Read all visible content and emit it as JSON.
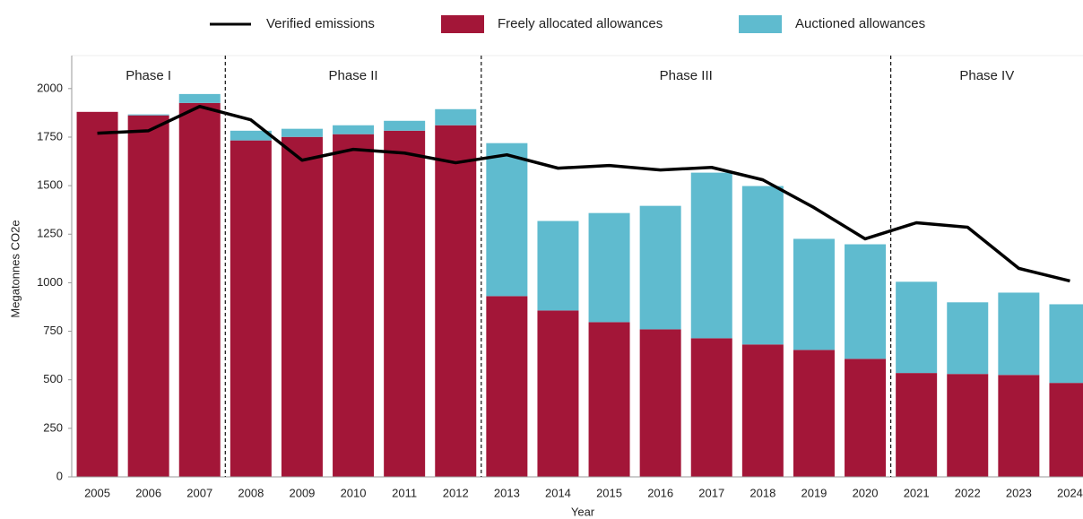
{
  "chart_data": {
    "type": "stacked-bar-line",
    "xlabel": "Year",
    "ylabel": "Megatonnes CO2e",
    "categories": [
      "2005",
      "2006",
      "2007",
      "2008",
      "2009",
      "2010",
      "2011",
      "2012",
      "2013",
      "2014",
      "2015",
      "2016",
      "2017",
      "2018",
      "2019",
      "2020",
      "2021",
      "2022",
      "2023",
      "2024"
    ],
    "series": [
      {
        "name": "Freely allocated allowances",
        "kind": "bar",
        "color": "#a31638",
        "values": [
          1880,
          1862,
          1926,
          1733,
          1751,
          1765,
          1783,
          1811,
          931,
          857,
          797,
          760,
          714,
          682,
          654,
          608,
          535,
          530,
          525,
          484
        ]
      },
      {
        "name": "Auctioned allowances",
        "kind": "bar",
        "color": "#5fbbcf",
        "values": [
          0,
          5,
          46,
          50,
          42,
          46,
          51,
          83,
          788,
          461,
          562,
          636,
          853,
          816,
          572,
          590,
          470,
          369,
          424,
          405
        ]
      },
      {
        "name": "Verified emissions",
        "kind": "line",
        "color": "#000000",
        "values": [
          1770,
          1783,
          1908,
          1839,
          1631,
          1687,
          1668,
          1618,
          1659,
          1590,
          1604,
          1581,
          1594,
          1530,
          1387,
          1226,
          1309,
          1286,
          1074,
          1009
        ]
      }
    ],
    "phases": [
      {
        "label": "Phase I",
        "start": "2005",
        "end": "2007"
      },
      {
        "label": "Phase II",
        "start": "2008",
        "end": "2012"
      },
      {
        "label": "Phase III",
        "start": "2013",
        "end": "2020"
      },
      {
        "label": "Phase IV",
        "start": "2021",
        "end": "2024"
      }
    ],
    "ylim": [
      0,
      2170
    ],
    "yticks": [
      0,
      250,
      500,
      750,
      1000,
      1250,
      1500,
      1750,
      2000
    ],
    "grid": false
  }
}
